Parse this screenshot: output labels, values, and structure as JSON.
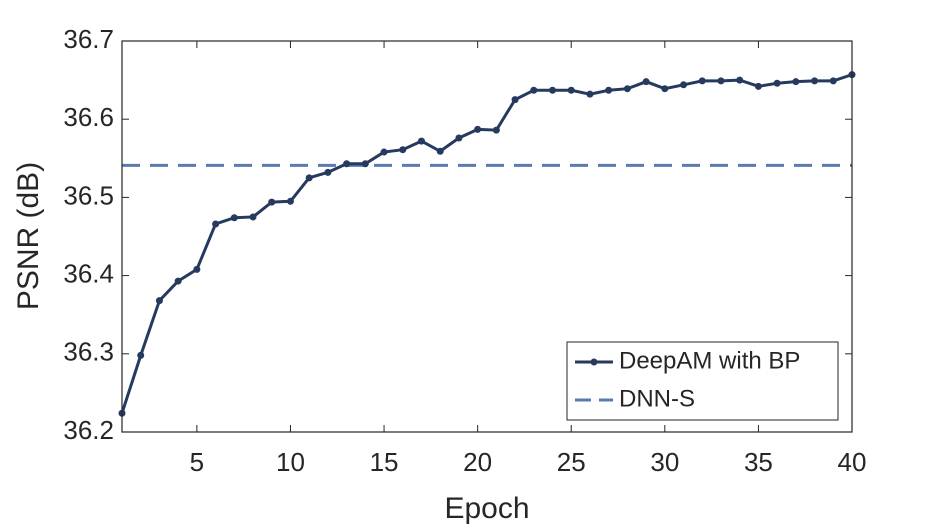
{
  "chart_data": {
    "type": "line",
    "xlabel": "Epoch",
    "ylabel": "PSNR (dB)",
    "x": [
      1,
      2,
      3,
      4,
      5,
      6,
      7,
      8,
      9,
      10,
      11,
      12,
      13,
      14,
      15,
      16,
      17,
      18,
      19,
      20,
      21,
      22,
      23,
      24,
      25,
      26,
      27,
      28,
      29,
      30,
      31,
      32,
      33,
      34,
      35,
      36,
      37,
      38,
      39,
      40
    ],
    "series": [
      {
        "name": "DeepAM with BP",
        "color": "#253a5e",
        "values": [
          36.224,
          36.298,
          36.368,
          36.393,
          36.408,
          36.466,
          36.474,
          36.475,
          36.494,
          36.495,
          36.525,
          36.532,
          36.543,
          36.543,
          36.558,
          36.561,
          36.572,
          36.559,
          36.576,
          36.587,
          36.586,
          36.625,
          36.637,
          36.637,
          36.637,
          36.632,
          36.637,
          36.639,
          36.648,
          36.639,
          36.644,
          36.649,
          36.649,
          36.65,
          36.642,
          36.646,
          36.648,
          36.649,
          36.649,
          36.657
        ]
      }
    ],
    "hlines": [
      {
        "name": "DNN-S",
        "value": 36.541,
        "color": "#5b7bb0",
        "dashed": true
      }
    ],
    "xlim": [
      1,
      40
    ],
    "xticks": [
      5,
      10,
      15,
      20,
      25,
      30,
      35,
      40
    ],
    "ylim": [
      36.2,
      36.7
    ],
    "yticks": [
      36.2,
      36.3,
      36.4,
      36.5,
      36.6,
      36.7
    ],
    "grid": false,
    "legend": "lower right"
  }
}
